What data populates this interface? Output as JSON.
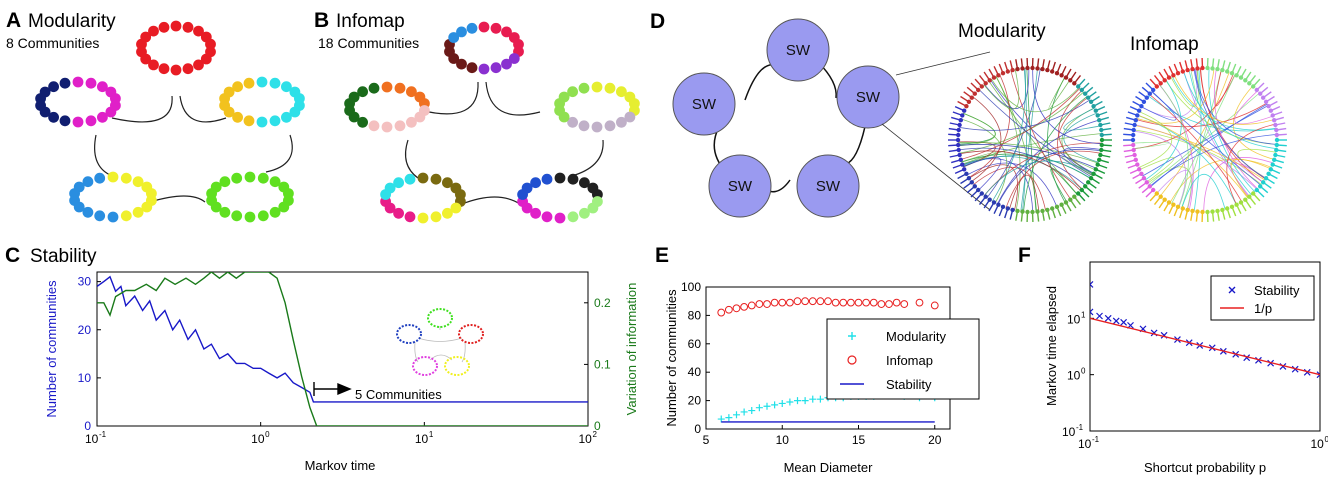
{
  "panels": {
    "A": {
      "letter": "A",
      "title": "Modularity",
      "subtitle": "8 Communities"
    },
    "B": {
      "letter": "B",
      "title": "Infomap",
      "subtitle": "18 Communities"
    },
    "C": {
      "letter": "C",
      "title": "Stability"
    },
    "D": {
      "letter": "D",
      "node_label": "SW",
      "left_title": "Modularity",
      "right_title": "Infomap"
    },
    "E": {
      "letter": "E"
    },
    "F": {
      "letter": "F"
    }
  },
  "ring_colors": {
    "A": [
      {
        "ring": "top",
        "segments": [
          {
            "color": "#e81c24",
            "n": 18
          }
        ]
      },
      {
        "ring": "upper-left",
        "segments": [
          {
            "color": "#e020c8",
            "n": 10
          },
          {
            "color": "#101e70",
            "n": 8
          }
        ]
      },
      {
        "ring": "upper-right",
        "segments": [
          {
            "color": "#2ee0e8",
            "n": 10
          },
          {
            "color": "#f2c21e",
            "n": 8
          }
        ]
      },
      {
        "ring": "lower-left",
        "segments": [
          {
            "color": "#f0f02c",
            "n": 9
          },
          {
            "color": "#2a8ee0",
            "n": 9
          }
        ]
      },
      {
        "ring": "lower-right",
        "segments": [
          {
            "color": "#60e020",
            "n": 18
          }
        ]
      }
    ],
    "B": [
      {
        "ring": "top",
        "segments": [
          {
            "color": "#e81c50",
            "n": 6
          },
          {
            "color": "#8a30d0",
            "n": 4
          },
          {
            "color": "#6a1a18",
            "n": 5
          },
          {
            "color": "#2a8ee0",
            "n": 3
          }
        ]
      },
      {
        "ring": "upper-left",
        "segments": [
          {
            "color": "#f07020",
            "n": 5
          },
          {
            "color": "#f4c0c0",
            "n": 6
          },
          {
            "color": "#1a6a1a",
            "n": 7
          }
        ]
      },
      {
        "ring": "upper-right",
        "segments": [
          {
            "color": "#e6ee30",
            "n": 6
          },
          {
            "color": "#c0b0c8",
            "n": 6
          },
          {
            "color": "#90e050",
            "n": 6
          }
        ]
      },
      {
        "ring": "lower-left",
        "segments": [
          {
            "color": "#7a6a10",
            "n": 6
          },
          {
            "color": "#f0f02c",
            "n": 4
          },
          {
            "color": "#e81c88",
            "n": 4
          },
          {
            "color": "#2ee0e8",
            "n": 4
          }
        ]
      },
      {
        "ring": "lower-right",
        "segments": [
          {
            "color": "#202020",
            "n": 5
          },
          {
            "color": "#a0f080",
            "n": 4
          },
          {
            "color": "#e020c8",
            "n": 5
          },
          {
            "color": "#2050d0",
            "n": 4
          }
        ]
      }
    ]
  },
  "inset_ring_colors": [
    "#2040c0",
    "#40e020",
    "#e02020",
    "#e040e0",
    "#f0f020"
  ],
  "chart_data": [
    {
      "panel": "C",
      "type": "line",
      "xlabel": "Markov time",
      "ylabel": "Number of communities",
      "ylabel_right": "Variation of information",
      "xscale": "log",
      "xlim": [
        0.1,
        100
      ],
      "xticks": [
        {
          "v": 0.1,
          "base": "10",
          "exp": "-1"
        },
        {
          "v": 1,
          "base": "10",
          "exp": "0"
        },
        {
          "v": 10,
          "base": "10",
          "exp": "1"
        },
        {
          "v": 100,
          "base": "10",
          "exp": "2"
        }
      ],
      "ylim": [
        0,
        32
      ],
      "yticks": [
        "0",
        "10",
        "20",
        "30"
      ],
      "ylim_right": [
        0,
        0.25
      ],
      "yticks_right": [
        "0",
        "0.1",
        "0.2"
      ],
      "annotation": "5 Communities",
      "series": [
        {
          "color": "#1818c8",
          "axis": "left",
          "x": [
            0.1,
            0.11,
            0.12,
            0.13,
            0.14,
            0.15,
            0.17,
            0.19,
            0.21,
            0.23,
            0.26,
            0.29,
            0.32,
            0.36,
            0.4,
            0.45,
            0.5,
            0.56,
            0.63,
            0.71,
            0.8,
            0.9,
            1.0,
            1.12,
            1.26,
            1.41,
            1.58,
            1.78,
            2.0,
            2.1,
            3,
            10,
            30,
            100
          ],
          "y": [
            29,
            30,
            31,
            28,
            29,
            25,
            27,
            24,
            26,
            22,
            24,
            20,
            22,
            18,
            20,
            16,
            17,
            14,
            15,
            13,
            13,
            12,
            12,
            11,
            10,
            11,
            9,
            8,
            7,
            5,
            5,
            5,
            5,
            5
          ]
        },
        {
          "color": "#1a7a1a",
          "axis": "right",
          "x": [
            0.1,
            0.11,
            0.12,
            0.13,
            0.15,
            0.17,
            0.2,
            0.23,
            0.26,
            0.3,
            0.35,
            0.4,
            0.45,
            0.5,
            0.56,
            0.63,
            0.71,
            0.8,
            0.9,
            1.0,
            1.12,
            1.26,
            1.41,
            1.58,
            1.78,
            2.0,
            2.2,
            2.5,
            10,
            100
          ],
          "y": [
            0.2,
            0.2,
            0.18,
            0.21,
            0.22,
            0.22,
            0.23,
            0.22,
            0.24,
            0.23,
            0.24,
            0.23,
            0.24,
            0.25,
            0.24,
            0.25,
            0.24,
            0.25,
            0.25,
            0.25,
            0.25,
            0.24,
            0.2,
            0.14,
            0.08,
            0.03,
            0,
            0,
            0,
            0
          ]
        }
      ]
    },
    {
      "panel": "E",
      "type": "scatter",
      "xlabel": "Mean Diameter",
      "ylabel": "Number of communities",
      "xlim": [
        5,
        21
      ],
      "xticks": [
        "5",
        "10",
        "15",
        "20"
      ],
      "ylim": [
        0,
        100
      ],
      "yticks": [
        "0",
        "20",
        "40",
        "60",
        "80",
        "100"
      ],
      "legend_position": "right",
      "series": [
        {
          "name": "Modularity",
          "marker": "+",
          "color": "#20e0e8",
          "x": [
            6,
            6.5,
            7,
            7.5,
            8,
            8.5,
            9,
            9.5,
            10,
            10.5,
            11,
            11.5,
            12,
            12.5,
            13,
            13.5,
            14,
            14.5,
            15,
            15.5,
            16,
            16.5,
            17,
            17.5,
            18,
            19,
            20
          ],
          "y": [
            7,
            8,
            10,
            12,
            13,
            15,
            16,
            17,
            18,
            19,
            20,
            20,
            21,
            21,
            22,
            22,
            22,
            23,
            23,
            23,
            23,
            24,
            24,
            24,
            23,
            22,
            22
          ]
        },
        {
          "name": "Infomap",
          "marker": "o",
          "color": "#e82020",
          "x": [
            6,
            6.5,
            7,
            7.5,
            8,
            8.5,
            9,
            9.5,
            10,
            10.5,
            11,
            11.5,
            12,
            12.5,
            13,
            13.5,
            14,
            14.5,
            15,
            15.5,
            16,
            16.5,
            17,
            17.5,
            18,
            19,
            20
          ],
          "y": [
            82,
            84,
            85,
            86,
            87,
            88,
            88,
            89,
            89,
            89,
            90,
            90,
            90,
            90,
            90,
            89,
            89,
            89,
            89,
            89,
            89,
            88,
            88,
            89,
            88,
            89,
            87
          ]
        },
        {
          "name": "Stability",
          "marker": "line",
          "color": "#1818c8",
          "x": [
            6,
            20
          ],
          "y": [
            5,
            5
          ]
        }
      ]
    },
    {
      "panel": "F",
      "type": "scatter",
      "xlabel": "Shortcut probability p",
      "ylabel": "Markov time elapsed",
      "xscale": "log",
      "yscale": "log",
      "xlim": [
        0.1,
        1
      ],
      "xticks": [
        {
          "v": 0.1,
          "base": "10",
          "exp": "-1"
        },
        {
          "v": 1,
          "base": "10",
          "exp": "0"
        }
      ],
      "ylim": [
        0.1,
        100
      ],
      "yticks": [
        {
          "v": 0.1,
          "base": "10",
          "exp": "-1"
        },
        {
          "v": 1,
          "base": "10",
          "exp": "0"
        },
        {
          "v": 10,
          "base": "10",
          "exp": "1"
        }
      ],
      "legend_position": "top-right",
      "series": [
        {
          "name": "Stability",
          "marker": "x",
          "color": "#1818c8",
          "x": [
            0.1,
            0.1,
            0.11,
            0.12,
            0.13,
            0.14,
            0.15,
            0.17,
            0.19,
            0.21,
            0.24,
            0.27,
            0.3,
            0.34,
            0.38,
            0.43,
            0.48,
            0.54,
            0.61,
            0.69,
            0.78,
            0.88,
            1.0
          ],
          "y": [
            40,
            13,
            11,
            10,
            9,
            8.5,
            7.5,
            6.5,
            5.5,
            5,
            4.2,
            3.7,
            3.3,
            3,
            2.6,
            2.3,
            2,
            1.8,
            1.6,
            1.4,
            1.25,
            1.1,
            1.0
          ]
        },
        {
          "name": "1/p",
          "marker": "line",
          "color": "#e82020",
          "x": [
            0.1,
            1
          ],
          "y": [
            10,
            1
          ]
        }
      ]
    }
  ]
}
